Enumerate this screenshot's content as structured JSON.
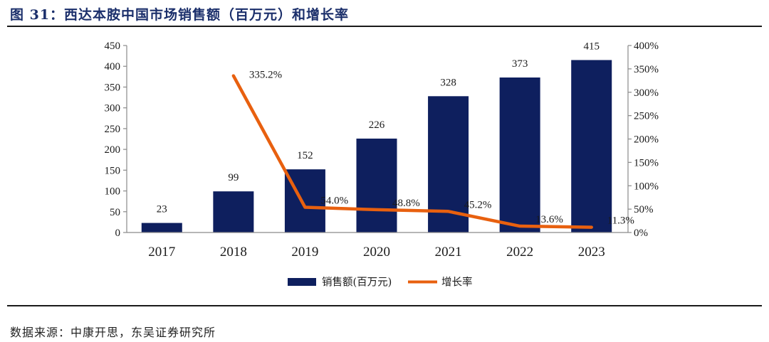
{
  "title": "图 31：西达本胺中国市场销售额（百万元）和增长率",
  "source": "数据来源：中康开思，东吴证券研究所",
  "colors": {
    "bar": "#0e1f5e",
    "line": "#e8600f",
    "title": "#1b2f6b"
  },
  "chart_data": {
    "type": "bar",
    "title": "西达本胺中国市场销售额（百万元）和增长率",
    "categories": [
      "2017",
      "2018",
      "2019",
      "2020",
      "2021",
      "2022",
      "2023"
    ],
    "series": [
      {
        "name": "销售额(百万元)",
        "type": "bar",
        "axis": "left",
        "values": [
          23,
          99,
          152,
          226,
          328,
          373,
          415
        ],
        "labels": [
          "23",
          "99",
          "152",
          "226",
          "328",
          "373",
          "415"
        ]
      },
      {
        "name": "增长率",
        "type": "line",
        "axis": "right",
        "values": [
          null,
          335.2,
          54.0,
          48.8,
          45.2,
          13.6,
          11.3
        ],
        "labels": [
          "",
          "335.2%",
          "54.0%",
          "48.8%",
          "45.2%",
          "13.6%",
          "11.3%"
        ]
      }
    ],
    "left_axis": {
      "ylim": [
        0,
        450
      ],
      "ticks": [
        "0",
        "50",
        "100",
        "150",
        "200",
        "250",
        "300",
        "350",
        "400",
        "450"
      ]
    },
    "right_axis": {
      "ylim": [
        0,
        400
      ],
      "ticks": [
        "0%",
        "50%",
        "100%",
        "150%",
        "200%",
        "250%",
        "300%",
        "350%",
        "400%"
      ]
    },
    "xlabel": "",
    "ylabel": "",
    "grid": false,
    "legend": {
      "position": "bottom",
      "entries": [
        "销售额(百万元)",
        "增长率"
      ]
    }
  }
}
